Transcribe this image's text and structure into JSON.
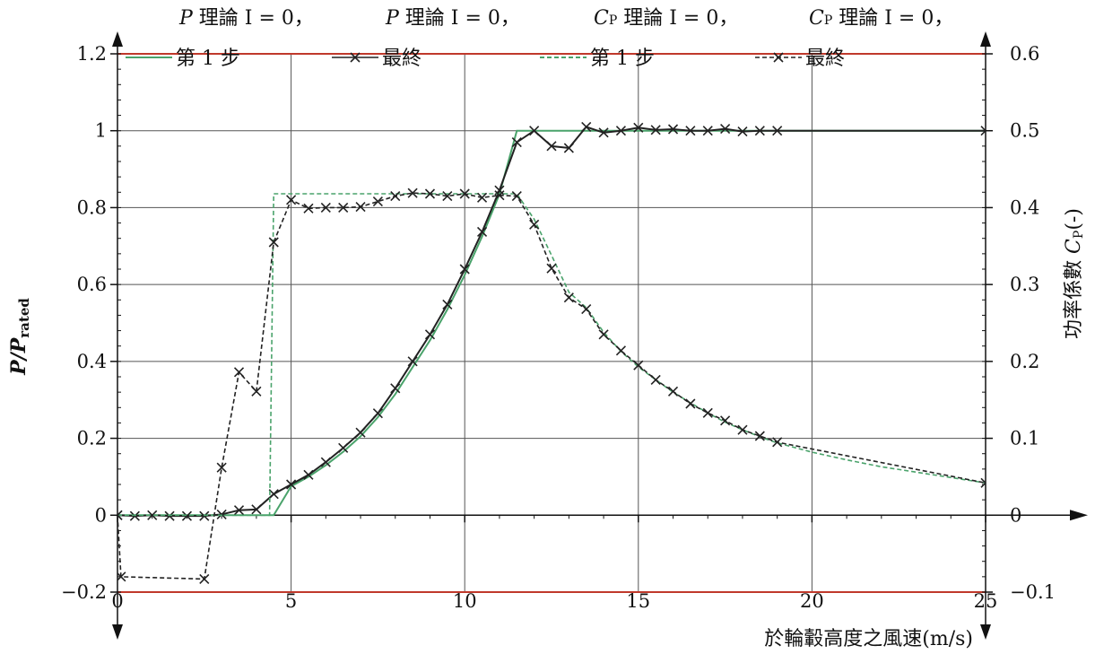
{
  "chart_data": {
    "type": "line",
    "xlabel": "於輪轂高度之風速(m/s)",
    "ylabel_left": {
      "main": "P/P",
      "sub": "rated"
    },
    "ylabel_right": {
      "prefix": "功率係數 ",
      "main": "C",
      "sub": "P",
      "suffix": "(-)"
    },
    "xlim": [
      0,
      25
    ],
    "xticks": [
      0,
      5,
      10,
      15,
      20,
      25
    ],
    "ylim_left": [
      -0.2,
      1.2
    ],
    "yticks_left": [
      -0.2,
      0,
      0.2,
      0.4,
      0.6,
      0.8,
      1,
      1.2
    ],
    "ytick_labels_left": [
      "−0.2",
      "0",
      "0.2",
      "0.4",
      "0.6",
      "0.8",
      "1",
      "1.2"
    ],
    "ylim_right": [
      -0.1,
      0.6
    ],
    "yticks_right": [
      -0.1,
      0,
      0.1,
      0.2,
      0.3,
      0.4,
      0.5,
      0.6
    ],
    "ytick_labels_right": [
      "−0.1",
      "0",
      "0.1",
      "0.2",
      "0.3",
      "0.4",
      "0.5",
      "0.6"
    ],
    "limit_lines": [
      -0.2,
      1.2
    ],
    "grid": true,
    "legend_position": "top",
    "legend": [
      {
        "title_main": "P",
        "title_sub": "",
        "title_rest": " 理論 I = 0，",
        "label": "第 1 步",
        "style": "solid-green"
      },
      {
        "title_main": "P",
        "title_sub": "",
        "title_rest": " 理論 I = 0，",
        "label": "最終",
        "style": "solid-black-x"
      },
      {
        "title_main": "C",
        "title_sub": "P",
        "title_rest": " 理論 I = 0，",
        "label": "第 1 步",
        "style": "dashed-green"
      },
      {
        "title_main": "C",
        "title_sub": "P",
        "title_rest": " 理論 I = 0，",
        "label": "最終",
        "style": "dashed-black-x"
      }
    ],
    "series": [
      {
        "axis": "left",
        "color": "#4aa36b",
        "dash": false,
        "marker": false,
        "x": [
          0,
          4.5,
          5,
          5.5,
          6,
          6.5,
          7,
          7.5,
          8,
          8.5,
          9,
          9.5,
          10,
          10.5,
          11,
          11.5,
          25
        ],
        "y": [
          0,
          0,
          0.075,
          0.1,
          0.13,
          0.165,
          0.205,
          0.255,
          0.315,
          0.385,
          0.455,
          0.535,
          0.625,
          0.725,
          0.835,
          1.0,
          1.0
        ]
      },
      {
        "axis": "left",
        "color": "#222222",
        "dash": false,
        "marker": true,
        "x": [
          0,
          0.5,
          1,
          1.5,
          2,
          2.5,
          3,
          3.5,
          4,
          4.5,
          5,
          5.5,
          6,
          6.5,
          7,
          7.5,
          8,
          8.5,
          9,
          9.5,
          10,
          10.5,
          11,
          11.5,
          12,
          12.5,
          13,
          13.5,
          14,
          14.5,
          15,
          15.5,
          16,
          16.5,
          17,
          17.5,
          18,
          18.5,
          19,
          25
        ],
        "y": [
          0,
          -0.002,
          0,
          -0.002,
          -0.002,
          -0.002,
          0.002,
          0.013,
          0.015,
          0.055,
          0.08,
          0.105,
          0.138,
          0.175,
          0.215,
          0.265,
          0.33,
          0.4,
          0.47,
          0.548,
          0.64,
          0.737,
          0.845,
          0.97,
          1.0,
          0.96,
          0.955,
          1.01,
          0.995,
          1.0,
          1.008,
          1.002,
          1.004,
          1.0,
          1.0,
          1.005,
          0.998,
          1.0,
          1.0,
          1.0
        ]
      },
      {
        "axis": "right",
        "color": "#4aa36b",
        "dash": true,
        "marker": false,
        "x": [
          0,
          4.38,
          4.5,
          11.5,
          12,
          12.5,
          13,
          13.5,
          14,
          14.5,
          15,
          15.5,
          16,
          16.5,
          17,
          17.5,
          18,
          18.5,
          19,
          20,
          21,
          22,
          23,
          24,
          25
        ],
        "y": [
          0,
          0,
          0.418,
          0.418,
          0.385,
          0.338,
          0.29,
          0.27,
          0.238,
          0.213,
          0.193,
          0.176,
          0.16,
          0.146,
          0.133,
          0.121,
          0.111,
          0.102,
          0.094,
          0.082,
          0.072,
          0.063,
          0.056,
          0.049,
          0.042
        ]
      },
      {
        "axis": "right",
        "color": "#222222",
        "dash": true,
        "marker": true,
        "x": [
          0,
          0.1,
          2.5,
          3,
          3.5,
          4,
          4.5,
          5,
          5.5,
          6,
          6.5,
          7,
          7.5,
          8,
          8.5,
          9,
          9.5,
          10,
          10.5,
          11,
          11.5,
          12,
          12.5,
          13,
          13.5,
          14,
          14.5,
          15,
          15.5,
          16,
          16.5,
          17,
          17.5,
          18,
          18.5,
          19,
          25
        ],
        "y": [
          0,
          -0.08,
          -0.083,
          0.062,
          0.186,
          0.161,
          0.355,
          0.41,
          0.399,
          0.4,
          0.4,
          0.401,
          0.408,
          0.415,
          0.419,
          0.418,
          0.415,
          0.418,
          0.413,
          0.416,
          0.415,
          0.378,
          0.321,
          0.283,
          0.268,
          0.235,
          0.214,
          0.195,
          0.176,
          0.161,
          0.145,
          0.133,
          0.123,
          0.111,
          0.103,
          0.095,
          0.042
        ]
      }
    ]
  }
}
